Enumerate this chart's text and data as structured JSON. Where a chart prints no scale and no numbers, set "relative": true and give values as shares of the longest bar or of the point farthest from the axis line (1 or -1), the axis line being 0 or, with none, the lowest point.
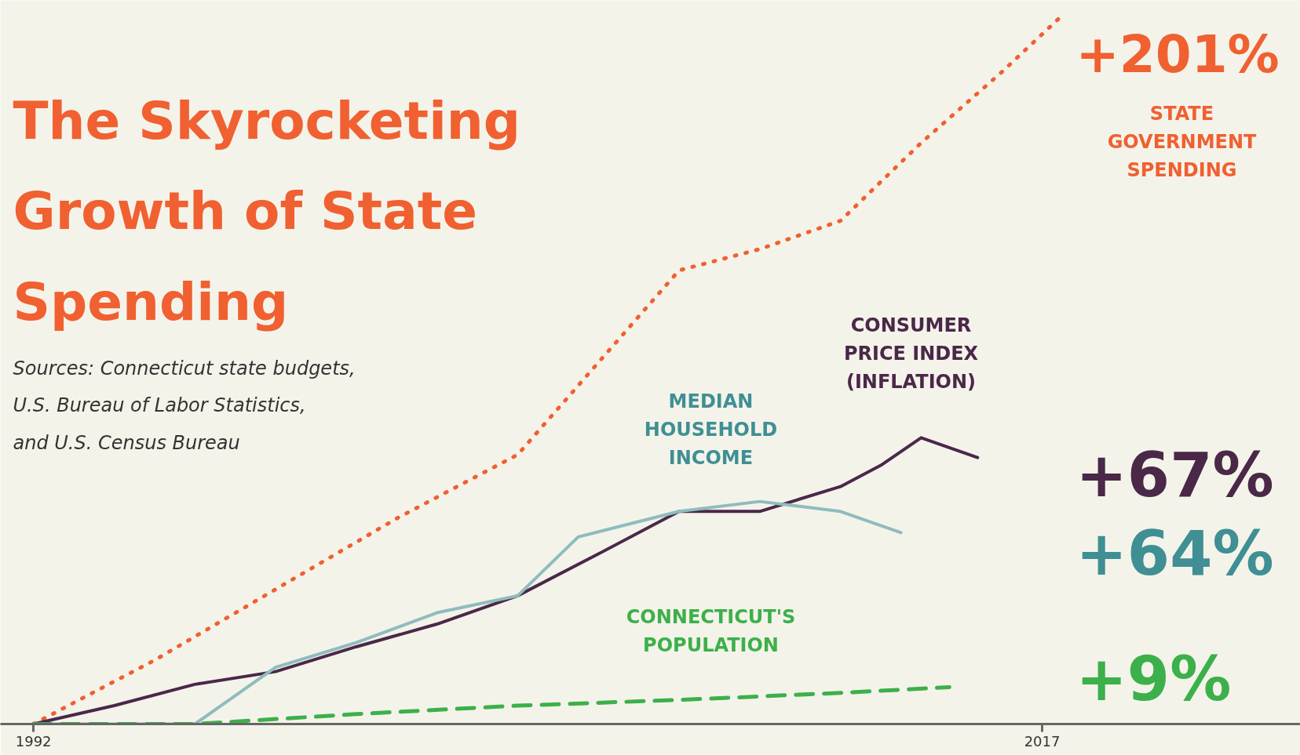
{
  "chart_data": {
    "type": "line",
    "title": "The Skyrocketing Growth of State Spending",
    "relative": true,
    "xlim": [
      1991.18,
      2023.4
    ],
    "xticks": [
      1992,
      2017
    ],
    "grid": false,
    "legend": false,
    "annotations": [
      "Sources: Connecticut state budgets, U.S. Bureau of Labor Statistics, and U.S. Census Bureau",
      "+201%",
      "+67%",
      "+64%",
      "+9%"
    ],
    "series": [
      {
        "name": "STATE\nGOVERNMENT\nSPENDING",
        "color": "#f06030",
        "line_style": "dotted",
        "x": [
          1992,
          1995,
          1998,
          2001,
          2004,
          2006,
          2008,
          2010,
          2012,
          2014,
          2016,
          2017.5
        ],
        "values": [
          0,
          0.09,
          0.19,
          0.29,
          0.38,
          0.51,
          0.64,
          0.67,
          0.71,
          0.82,
          0.92,
          1.0
        ]
      },
      {
        "name": "CONSUMER\nPRICE INDEX\n(INFLATION)",
        "color": "#4a2848",
        "line_style": "solid",
        "x": [
          1992,
          1994,
          1996,
          1998,
          2000,
          2002,
          2004,
          2006,
          2008,
          2010,
          2012,
          2013,
          2014,
          2015.4
        ],
        "values": [
          0,
          0.026,
          0.056,
          0.074,
          0.109,
          0.141,
          0.181,
          0.24,
          0.3,
          0.3,
          0.335,
          0.365,
          0.404,
          0.376
        ]
      },
      {
        "name": "MEDIAN\nHOUSEHOLD\nINCOME",
        "color": "#8fbcbe",
        "line_style": "solid",
        "x": [
          1992,
          1996,
          1998,
          2000,
          2002,
          2004,
          2005.5,
          2008,
          2010,
          2012,
          2013.5
        ],
        "values": [
          0,
          0,
          0.08,
          0.115,
          0.157,
          0.181,
          0.264,
          0.3,
          0.314,
          0.3,
          0.27
        ]
      },
      {
        "name": "CONNECTICUT'S\nPOPULATION",
        "color": "#3cb04a",
        "line_style": "dashed",
        "x": [
          1992,
          1996,
          2000,
          2004,
          2008,
          2012,
          2014.7
        ],
        "values": [
          0,
          0,
          0.014,
          0.026,
          0.034,
          0.044,
          0.052
        ]
      }
    ]
  }
}
